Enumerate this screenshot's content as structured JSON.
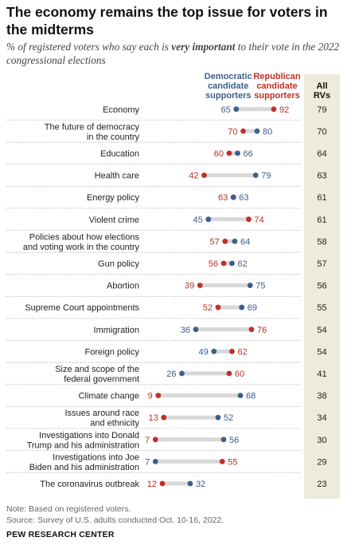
{
  "header": {
    "title": "The economy remains the top issue for voters in the midterms",
    "subtitle_pre": "% of registered voters who say each is ",
    "subtitle_em": "very important",
    "subtitle_post": " to their vote in the 2022 congressional elections"
  },
  "footer": {
    "note": "Note: Based on registered voters.",
    "source": "Source: Survey of U.S. adults conducted Oct. 10-16, 2022.",
    "brand": "PEW RESEARCH CENTER"
  },
  "colors": {
    "democratic": "#3d5e8a",
    "republican": "#bf3125",
    "connector": "#d8d8d8",
    "total_column_bg": "#ecebdc"
  },
  "chart_data": {
    "type": "dot",
    "series": [
      {
        "name": "Democratic candidate supporters",
        "key": "dem",
        "color": "#3d5e8a"
      },
      {
        "name": "Republican candidate supporters",
        "key": "rep",
        "color": "#bf3125"
      }
    ],
    "total_column_label": [
      "All",
      "RVs"
    ],
    "xlim": [
      0,
      100
    ],
    "categories": [
      {
        "label": [
          "Economy"
        ],
        "dem": 65,
        "rep": 92,
        "all": 79
      },
      {
        "label": [
          "The future of democracy",
          "in the country"
        ],
        "dem": 80,
        "rep": 70,
        "all": 70
      },
      {
        "label": [
          "Education"
        ],
        "dem": 66,
        "rep": 60,
        "all": 64
      },
      {
        "label": [
          "Health care"
        ],
        "dem": 79,
        "rep": 42,
        "all": 63
      },
      {
        "label": [
          "Energy policy"
        ],
        "dem": 63,
        "rep": 63,
        "all": 61
      },
      {
        "label": [
          "Violent crime"
        ],
        "dem": 45,
        "rep": 74,
        "all": 61
      },
      {
        "label": [
          "Policies about how elections",
          "and voting work in the country"
        ],
        "dem": 64,
        "rep": 57,
        "all": 58
      },
      {
        "label": [
          "Gun policy"
        ],
        "dem": 62,
        "rep": 56,
        "all": 57
      },
      {
        "label": [
          "Abortion"
        ],
        "dem": 75,
        "rep": 39,
        "all": 56
      },
      {
        "label": [
          "Supreme Court appointments"
        ],
        "dem": 69,
        "rep": 52,
        "all": 55
      },
      {
        "label": [
          "Immigration"
        ],
        "dem": 36,
        "rep": 76,
        "all": 54
      },
      {
        "label": [
          "Foreign policy"
        ],
        "dem": 49,
        "rep": 62,
        "all": 54
      },
      {
        "label": [
          "Size and scope of the",
          "federal government"
        ],
        "dem": 26,
        "rep": 60,
        "all": 41
      },
      {
        "label": [
          "Climate change"
        ],
        "dem": 68,
        "rep": 9,
        "all": 38
      },
      {
        "label": [
          "Issues around race",
          "and ethnicity"
        ],
        "dem": 52,
        "rep": 13,
        "all": 34
      },
      {
        "label": [
          "Investigations into Donald",
          "Trump and his administration"
        ],
        "dem": 56,
        "rep": 7,
        "all": 30
      },
      {
        "label": [
          "Investigations into Joe",
          "Biden and his administration"
        ],
        "dem": 7,
        "rep": 55,
        "all": 29
      },
      {
        "label": [
          "The coronavirus outbreak"
        ],
        "dem": 32,
        "rep": 12,
        "all": 23
      }
    ]
  }
}
